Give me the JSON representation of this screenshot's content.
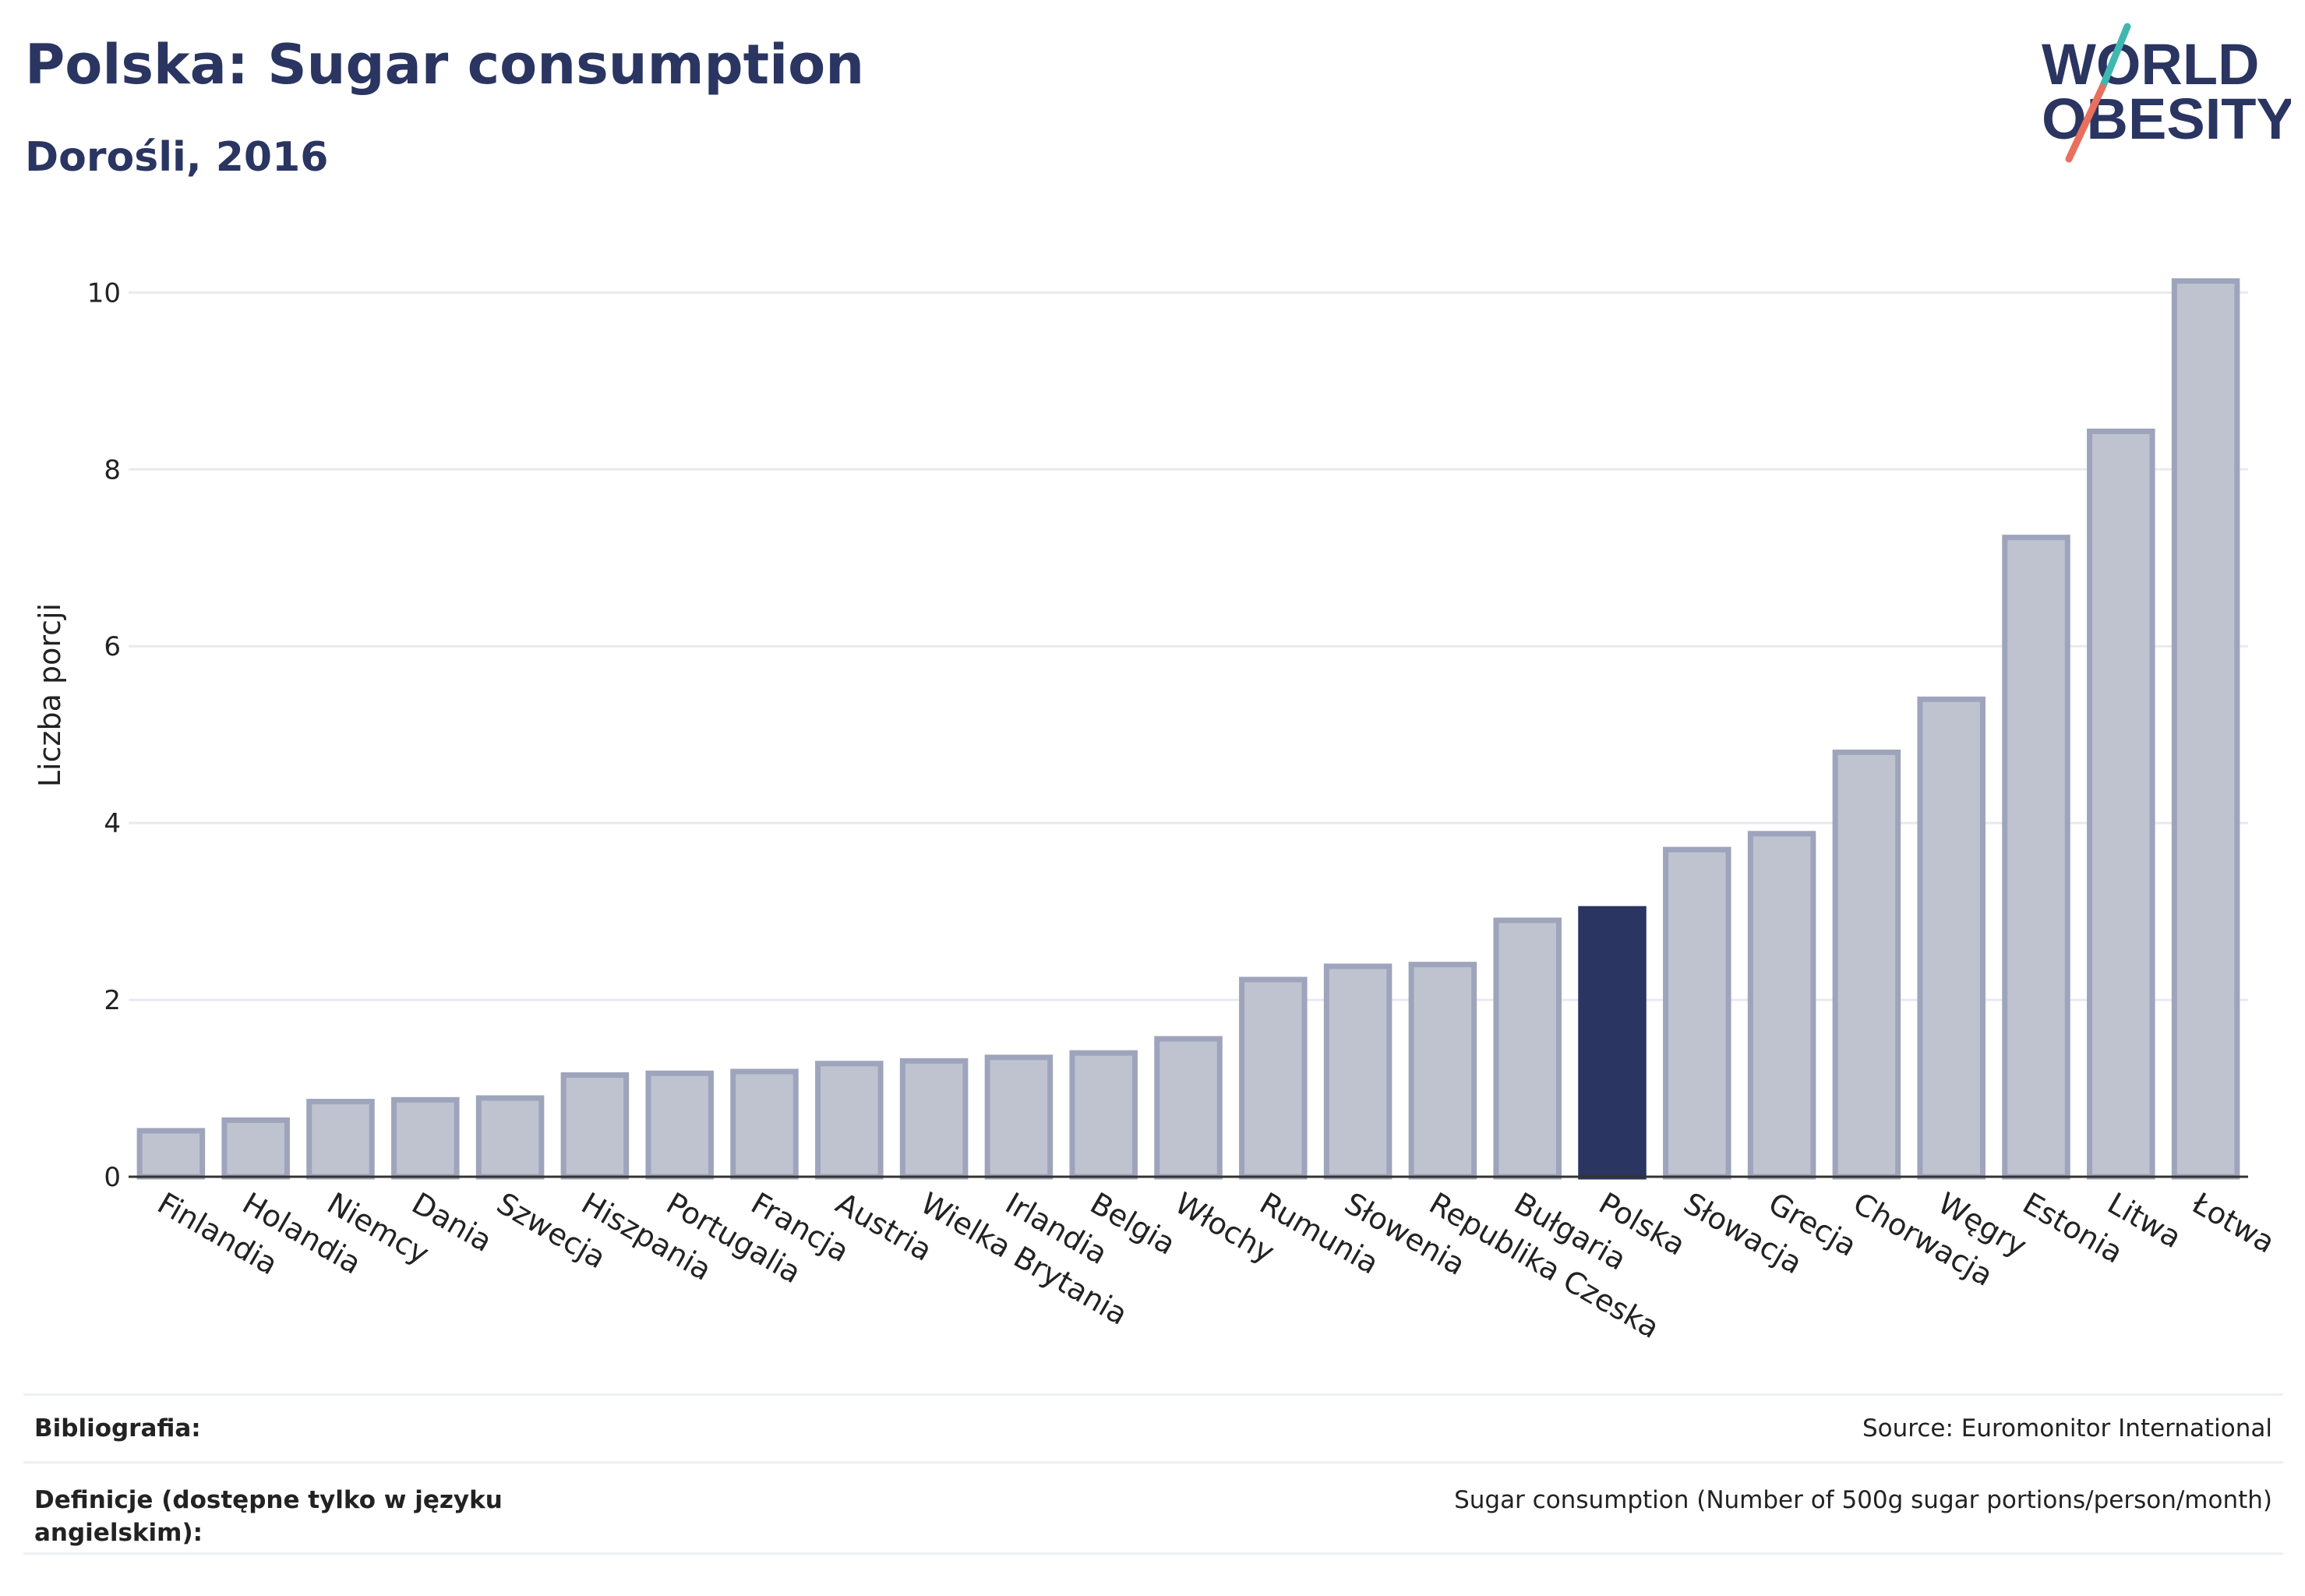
{
  "header": {
    "title": "Polska: Sugar consumption",
    "subtitle": "Dorośli, 2016"
  },
  "logo": {
    "line1": "WORLD",
    "line2": "OBESITY",
    "accent_teal": "#3fb8b1",
    "accent_coral": "#e8705d",
    "text_color": "#2a3561"
  },
  "colors": {
    "bar_default": "#bfc3d0",
    "bar_default_border": "#9ea4bb",
    "bar_highlight": "#2a3561",
    "grid": "#e8eaf0"
  },
  "chart_data": {
    "type": "bar",
    "ylabel": "Liczba porcji",
    "xlabel": "",
    "ylim": [
      0,
      10.4
    ],
    "yticks": [
      0,
      2,
      4,
      6,
      8,
      10
    ],
    "grid": true,
    "highlight": "Polska",
    "categories": [
      "Finlandia",
      "Holandia",
      "Niemcy",
      "Dania",
      "Szwecja",
      "Hiszpania",
      "Portugalia",
      "Francja",
      "Austria",
      "Wielka Brytania",
      "Irlandia",
      "Belgia",
      "Włochy",
      "Rumunia",
      "Słowenia",
      "Republika Czeska",
      "Bułgaria",
      "Polska",
      "Słowacja",
      "Grecja",
      "Chorwacja",
      "Węgry",
      "Estonia",
      "Litwa",
      "Łotwa"
    ],
    "values": [
      0.52,
      0.64,
      0.85,
      0.87,
      0.89,
      1.15,
      1.17,
      1.19,
      1.28,
      1.31,
      1.35,
      1.4,
      1.56,
      2.23,
      2.38,
      2.4,
      2.9,
      3.03,
      3.7,
      3.88,
      4.8,
      5.4,
      7.23,
      8.43,
      10.13
    ]
  },
  "footer": {
    "bibliography_label": "Bibliografia:",
    "bibliography_value": "Source: Euromonitor International",
    "definitions_label": "Definicje (dostępne tylko w języku angielskim):",
    "definitions_value": "Sugar consumption (Number of 500g sugar portions/person/month)"
  }
}
